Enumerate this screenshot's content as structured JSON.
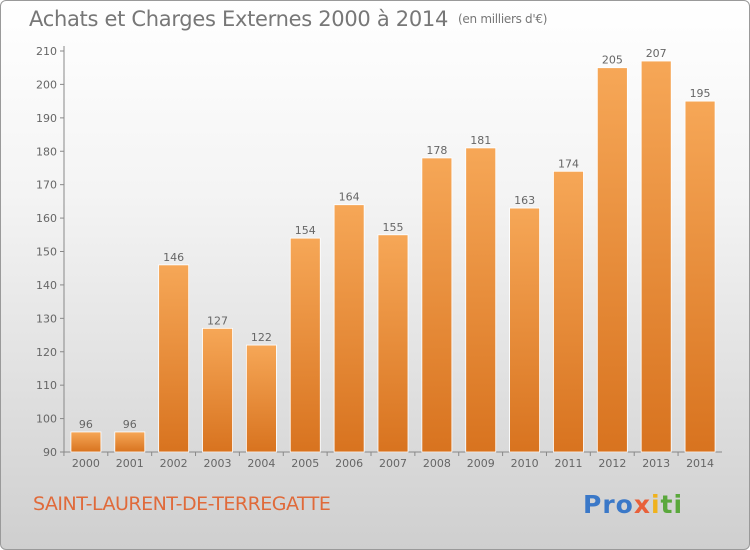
{
  "title": "Achats et Charges Externes 2000 à 2014",
  "unit_note": "(en milliers d'€)",
  "commune": "SAINT-LAURENT-DE-TERREGATTE",
  "logo": {
    "part1": "Pro",
    "part2": "x",
    "part3": "i",
    "part4": "ti"
  },
  "colors": {
    "bar_top": "#f6a757",
    "bar_bottom": "#d8731f",
    "text": "#666666",
    "commune": "#e06a3a"
  },
  "chart_data": {
    "type": "bar",
    "categories": [
      "2000",
      "2001",
      "2002",
      "2003",
      "2004",
      "2005",
      "2006",
      "2007",
      "2008",
      "2009",
      "2010",
      "2011",
      "2012",
      "2013",
      "2014"
    ],
    "values": [
      96,
      96,
      146,
      127,
      122,
      154,
      164,
      155,
      178,
      181,
      163,
      174,
      205,
      207,
      195
    ],
    "ylim": [
      90,
      210
    ],
    "yticks": [
      90,
      100,
      110,
      120,
      130,
      140,
      150,
      160,
      170,
      180,
      190,
      200,
      210
    ],
    "grid": false,
    "data_labels": true
  }
}
